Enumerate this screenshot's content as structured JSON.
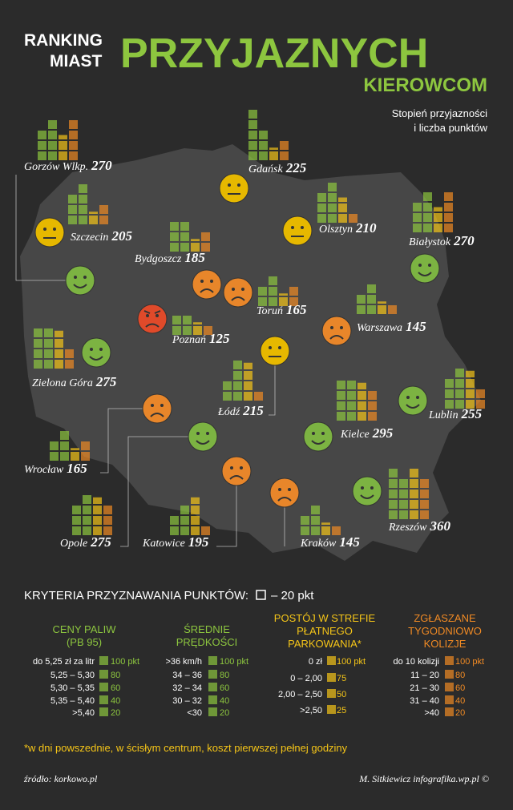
{
  "header": {
    "title_line1": "RANKING",
    "title_line2": "MIAST",
    "title_main": "PRZYJAZNYCH",
    "title_sub": "KIEROWCOM",
    "subtitle_line1": "Stopień przyjazności",
    "subtitle_line2": "i liczba punktów"
  },
  "cities": [
    {
      "name": "Gorzów Wlkp.",
      "score": 270,
      "points": [
        60,
        80,
        50,
        80
      ]
    },
    {
      "name": "Gdańsk",
      "score": 225,
      "points": [
        100,
        60,
        25,
        40
      ]
    },
    {
      "name": "Szczecin",
      "score": 205,
      "points": [
        60,
        80,
        25,
        40
      ]
    },
    {
      "name": "Olsztyn",
      "score": 210,
      "points": [
        60,
        80,
        50,
        20
      ]
    },
    {
      "name": "Białystok",
      "score": 270,
      "points": [
        60,
        80,
        50,
        80
      ]
    },
    {
      "name": "Bydgoszcz",
      "score": 185,
      "points": [
        60,
        60,
        25,
        40
      ]
    },
    {
      "name": "Toruń",
      "score": 165,
      "points": [
        40,
        60,
        25,
        40
      ]
    },
    {
      "name": "Poznań",
      "score": 125,
      "points": [
        40,
        40,
        25,
        20
      ]
    },
    {
      "name": "Warszawa",
      "score": 145,
      "points": [
        40,
        60,
        25,
        20
      ]
    },
    {
      "name": "Zielona Góra",
      "score": 275,
      "points": [
        80,
        80,
        75,
        40
      ]
    },
    {
      "name": "Łódź",
      "score": 215,
      "points": [
        40,
        80,
        75,
        20
      ]
    },
    {
      "name": "Lublin",
      "score": 255,
      "points": [
        60,
        80,
        75,
        40
      ]
    },
    {
      "name": "Wrocław",
      "score": 165,
      "points": [
        40,
        60,
        25,
        40
      ]
    },
    {
      "name": "Kielce",
      "score": 295,
      "points": [
        80,
        80,
        75,
        60
      ]
    },
    {
      "name": "Opole",
      "score": 275,
      "points": [
        60,
        80,
        75,
        60
      ]
    },
    {
      "name": "Katowice",
      "score": 195,
      "points": [
        40,
        60,
        75,
        20
      ]
    },
    {
      "name": "Kraków",
      "score": 145,
      "points": [
        40,
        60,
        25,
        20
      ]
    },
    {
      "name": "Rzeszów",
      "score": 360,
      "points": [
        100,
        80,
        100,
        80
      ]
    }
  ],
  "criteria": {
    "title": "KRYTERIA PRZYZNAWANIA PUNKTÓW:",
    "unit": "– 20 pkt",
    "columns": [
      {
        "heading": [
          "CENY PALIW",
          "(PB 95)"
        ],
        "color": "#8dc63f",
        "rows": [
          {
            "label": "do 5,25 zł za litr",
            "points": "100 pkt"
          },
          {
            "label": "5,25 – 5,30",
            "points": "80"
          },
          {
            "label": "5,30 – 5,35",
            "points": "60"
          },
          {
            "label": "5,35 – 5,40",
            "points": "40"
          },
          {
            "label": ">5,40",
            "points": "20"
          }
        ]
      },
      {
        "heading": [
          "ŚREDNIE",
          "PRĘDKOŚCI"
        ],
        "color": "#8dc63f",
        "rows": [
          {
            "label": ">36 km/h",
            "points": "100 pkt"
          },
          {
            "label": "34 – 36",
            "points": "80"
          },
          {
            "label": "32 – 34",
            "points": "60"
          },
          {
            "label": "30 – 32",
            "points": "40"
          },
          {
            "label": "<30",
            "points": "20"
          }
        ]
      },
      {
        "heading": [
          "POSTÓJ W STREFIE",
          "PŁATNEGO",
          "PARKOWANIA*"
        ],
        "color": "#f5c518",
        "rows": [
          {
            "label": "0 zł",
            "points": "100 pkt"
          },
          {
            "label": "0 – 2,00",
            "points": "75"
          },
          {
            "label": "2,00 – 2,50",
            "points": "50"
          },
          {
            "label": ">2,50",
            "points": "25"
          }
        ]
      },
      {
        "heading": [
          "ZGŁASZANE",
          "TYGODNIOWO",
          "KOLIZJE"
        ],
        "color": "#f08a24",
        "rows": [
          {
            "label": "do 10 kolizji",
            "points": "100 pkt"
          },
          {
            "label": "11 – 20",
            "points": "80"
          },
          {
            "label": "21 – 30",
            "points": "60"
          },
          {
            "label": "31 – 40",
            "points": "40"
          },
          {
            "label": ">40",
            "points": "20"
          }
        ]
      }
    ]
  },
  "footnote": "*w dni powszednie, w ścisłym centrum, koszt pierwszej pełnej godziny",
  "source": "źródło: korkowo.pl",
  "author": "M. Sitkiewicz infografika.wp.pl ©"
}
